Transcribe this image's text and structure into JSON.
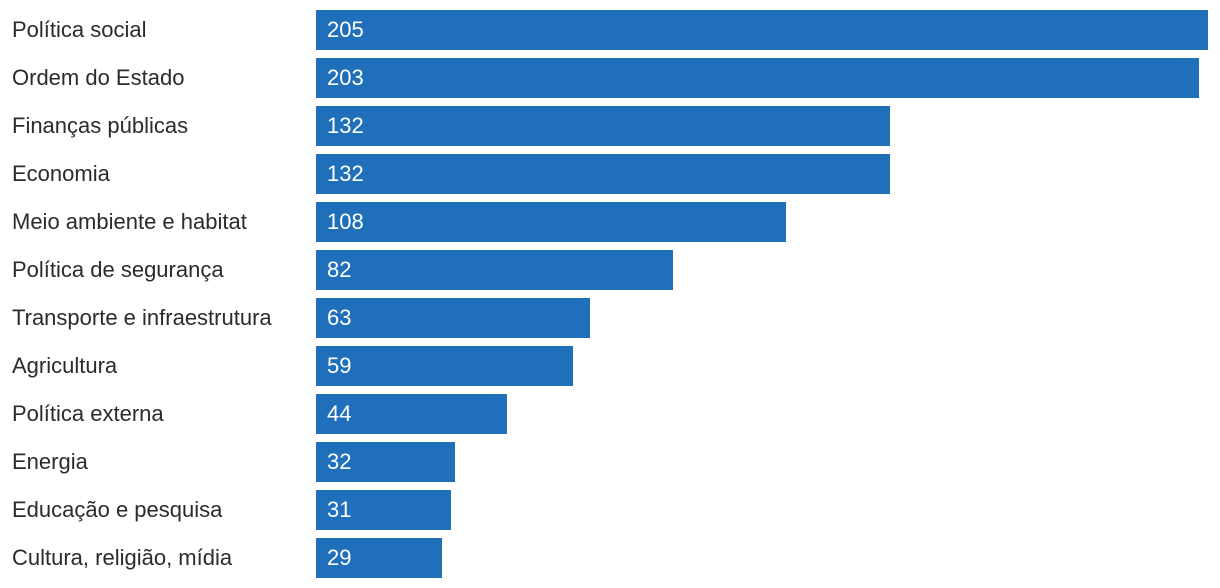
{
  "chart_data": {
    "type": "bar",
    "orientation": "horizontal",
    "categories": [
      "Política social",
      "Ordem do Estado",
      "Finanças públicas",
      "Economia",
      "Meio ambiente e habitat",
      "Política de segurança",
      "Transporte e infraestrutura",
      "Agricultura",
      "Política externa",
      "Energia",
      "Educação e pesquisa",
      "Cultura, religião, mídia"
    ],
    "values": [
      205,
      203,
      132,
      132,
      108,
      82,
      63,
      59,
      44,
      32,
      31,
      29
    ],
    "data_labels": [
      "205",
      "203",
      "132",
      "132",
      "108",
      "82",
      "63",
      "59",
      "44",
      "32",
      "31",
      "29"
    ],
    "xlim": [
      0,
      205
    ],
    "bar_color": "#1f6fba",
    "label_color": "#2b2b2b",
    "value_label_color": "#ffffff",
    "grid": false,
    "legend": "none"
  }
}
